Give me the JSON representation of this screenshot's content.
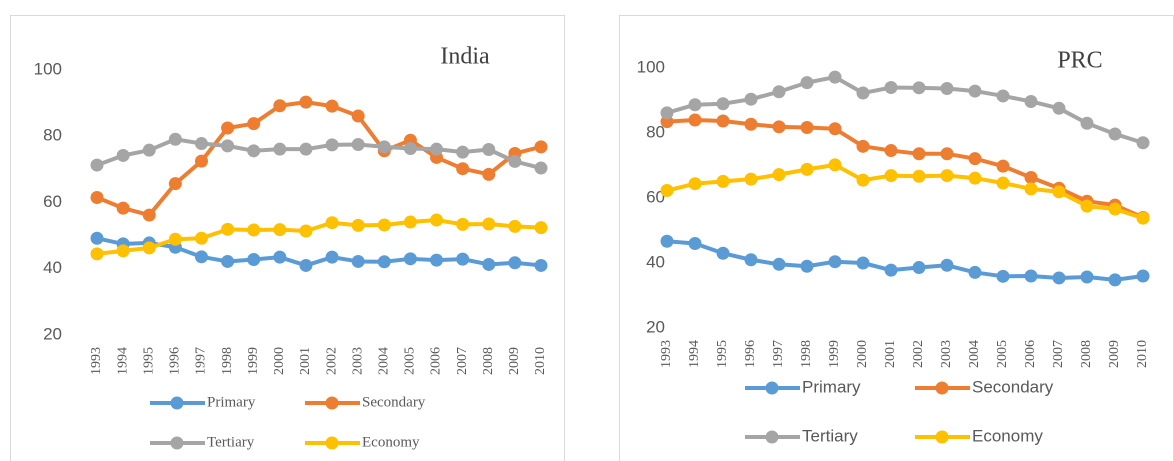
{
  "chart_data": [
    {
      "type": "line",
      "title": "India",
      "categories": [
        "1993",
        "1994",
        "1995",
        "1996",
        "1997",
        "1998",
        "1999",
        "2000",
        "2001",
        "2002",
        "2003",
        "2004",
        "2005",
        "2006",
        "2007",
        "2008",
        "2009",
        "2010"
      ],
      "ylim": [
        20,
        100
      ],
      "yticks": [
        20,
        40,
        60,
        80,
        100
      ],
      "series": [
        {
          "name": "Primary",
          "color": "#5b9bd5",
          "values": [
            49.2,
            47.5,
            47.8,
            46.5,
            43.6,
            42.2,
            42.8,
            43.5,
            41.0,
            43.5,
            42.2,
            42.1,
            43.0,
            42.6,
            42.9,
            41.3,
            41.8,
            41.0
          ]
        },
        {
          "name": "Secondary",
          "color": "#ed7d31",
          "values": [
            61.5,
            58.3,
            56.2,
            65.7,
            72.5,
            82.5,
            83.8,
            89.2,
            90.3,
            89.1,
            86.1,
            75.6,
            78.8,
            73.6,
            70.2,
            68.5,
            74.8,
            76.8
          ]
        },
        {
          "name": "Tertiary",
          "color": "#a5a5a5",
          "values": [
            71.3,
            74.2,
            75.8,
            79.1,
            77.8,
            77.1,
            75.6,
            76.1,
            76.1,
            77.4,
            77.5,
            76.8,
            76.3,
            76.1,
            75.2,
            76.0,
            72.4,
            70.4
          ]
        },
        {
          "name": "Economy",
          "color": "#ffc000",
          "values": [
            44.5,
            45.4,
            46.3,
            48.9,
            49.2,
            51.9,
            51.7,
            51.8,
            51.4,
            53.9,
            53.1,
            53.2,
            54.1,
            54.7,
            53.4,
            53.5,
            52.8,
            52.4
          ]
        }
      ]
    },
    {
      "type": "line",
      "title": "PRC",
      "categories": [
        "1993",
        "1994",
        "1995",
        "1996",
        "1997",
        "1998",
        "1999",
        "2000",
        "2001",
        "2002",
        "2003",
        "2004",
        "2005",
        "2006",
        "2007",
        "2008",
        "2009",
        "2010"
      ],
      "ylim": [
        20,
        100
      ],
      "yticks": [
        20,
        40,
        60,
        80,
        100
      ],
      "series": [
        {
          "name": "Primary",
          "color": "#5b9bd5",
          "values": [
            46.7,
            46.0,
            43.0,
            41.0,
            39.6,
            39.0,
            40.4,
            40.0,
            37.8,
            38.6,
            39.3,
            37.1,
            35.9,
            36.0,
            35.4,
            35.7,
            34.8,
            36.0
          ]
        },
        {
          "name": "Secondary",
          "color": "#ed7d31",
          "values": [
            83.5,
            84.0,
            83.7,
            82.7,
            81.9,
            81.7,
            81.3,
            75.9,
            74.6,
            73.6,
            73.6,
            72.1,
            69.8,
            66.3,
            63.0,
            59.0,
            57.8,
            54.0
          ]
        },
        {
          "name": "Tertiary",
          "color": "#a5a5a5",
          "values": [
            86.2,
            88.7,
            89.0,
            90.4,
            92.7,
            95.5,
            97.2,
            92.3,
            94.0,
            93.9,
            93.7,
            92.9,
            91.4,
            89.7,
            87.6,
            83.0,
            79.7,
            77.0
          ]
        },
        {
          "name": "Economy",
          "color": "#ffc000",
          "values": [
            62.3,
            64.4,
            65.1,
            65.8,
            67.2,
            68.8,
            70.2,
            65.5,
            66.9,
            66.7,
            66.9,
            66.1,
            64.6,
            62.8,
            61.9,
            57.5,
            56.6,
            53.8
          ]
        }
      ]
    }
  ]
}
